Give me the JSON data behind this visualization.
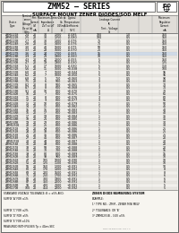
{
  "title": "ZMM52 – SERIES",
  "subtitle": "SURFACE MOUNT ZENER DIODES/SOD MELF",
  "bg_color": "#d8d4cc",
  "table_bg": "#ffffff",
  "header_bg": "#e0ddd8",
  "rows": [
    [
      "ZMM5221B",
      "2.4",
      "20",
      "30",
      "1200",
      "-0.085",
      "100",
      "1.0",
      "150"
    ],
    [
      "ZMM5222B",
      "2.5",
      "20",
      "30",
      "1250",
      "-0.080",
      "100",
      "0.5",
      "150"
    ],
    [
      "ZMM5223B",
      "2.7",
      "20",
      "30",
      "1300",
      "-0.076",
      "75",
      "0.5",
      "150"
    ],
    [
      "ZMM5224B",
      "2.8",
      "20",
      "35",
      "1400",
      "-0.076",
      "75",
      "0.5",
      "150"
    ],
    [
      "ZMM5225B",
      "3.0",
      "20",
      "40",
      "1600",
      "-0.075",
      "50",
      "0.5",
      "150"
    ],
    [
      "ZMM5226B",
      "3.3",
      "20",
      "28",
      "1600",
      "-0.070",
      "25",
      "0.5",
      "150"
    ],
    [
      "ZMM5227B",
      "3.6",
      "20",
      "24",
      "1700",
      "-0.065",
      "15",
      "0.5",
      "150"
    ],
    [
      "ZMM5228B",
      "3.9",
      "20",
      "23",
      "1900",
      "-0.060",
      "10",
      "0.5",
      "150"
    ],
    [
      "ZMM5229B",
      "4.3",
      "20",
      "22",
      "2000",
      "-0.055",
      "5",
      "0.5",
      "150"
    ],
    [
      "ZMM5230B",
      "4.7",
      "20",
      "19",
      "1900",
      "-0.030",
      "5",
      "0.5",
      "125"
    ],
    [
      "ZMM5231B",
      "5.1",
      "20",
      "17",
      "1600",
      "-0.030",
      "5",
      "0.5",
      "110"
    ],
    [
      "ZMM5232B",
      "5.6",
      "20",
      "11",
      "1600",
      "+0.038",
      "5",
      "0.5",
      "100"
    ],
    [
      "ZMM5233B",
      "6.0",
      "20",
      "7",
      "1600",
      "+0.044",
      "5",
      "0.5",
      "95"
    ],
    [
      "ZMM5234B",
      "6.2",
      "20",
      "7",
      "1000",
      "+0.050",
      "5",
      "0.5",
      "95"
    ],
    [
      "ZMM5235B",
      "6.8",
      "20",
      "5",
      "750",
      "+0.060",
      "3",
      "0.5",
      "90"
    ],
    [
      "ZMM5236B",
      "7.5",
      "20",
      "6",
      "500",
      "+0.063",
      "3",
      "0.5",
      "80"
    ],
    [
      "ZMM5237B",
      "8.2",
      "20",
      "8",
      "500",
      "+0.065",
      "3",
      "0.5",
      "70"
    ],
    [
      "ZMM5238B",
      "8.7",
      "20",
      "8",
      "600",
      "+0.068",
      "3",
      "0.5",
      "70"
    ],
    [
      "ZMM5239B",
      "9.1",
      "20",
      "10",
      "600",
      "+0.070",
      "3",
      "0.5",
      "70"
    ],
    [
      "ZMM5240B",
      "10",
      "20",
      "7",
      "600",
      "+0.075",
      "3",
      "0.5",
      "65"
    ],
    [
      "ZMM5241B",
      "11",
      "20",
      "8",
      "600",
      "+0.076",
      "3",
      "0.5",
      "60"
    ],
    [
      "ZMM5242B",
      "12",
      "20",
      "9",
      "600",
      "+0.077",
      "3",
      "0.5",
      "55"
    ],
    [
      "ZMM5243B",
      "13",
      "20",
      "10",
      "600",
      "+0.079",
      "1",
      "0.5",
      "50"
    ],
    [
      "ZMM5244B",
      "14",
      "20",
      "11",
      "600",
      "+0.082",
      "1",
      "0.5",
      "45"
    ],
    [
      "ZMM5245B",
      "15",
      "20",
      "16",
      "600",
      "+0.083",
      "1",
      "0.5",
      "40"
    ],
    [
      "ZMM5246B",
      "16",
      "20",
      "17",
      "600",
      "+0.083",
      "1",
      "0.5",
      "40"
    ],
    [
      "ZMM5247B",
      "17",
      "20",
      "19",
      "600",
      "+0.084",
      "1",
      "0.5",
      "35"
    ],
    [
      "ZMM5248B",
      "18",
      "20",
      "21",
      "600",
      "+0.085",
      "1",
      "0.5",
      "35"
    ],
    [
      "ZMM5249B",
      "19",
      "20",
      "23",
      "600",
      "+0.086",
      "1",
      "0.5",
      "30"
    ],
    [
      "ZMM5250B",
      "20",
      "20",
      "25",
      "600",
      "+0.086",
      "1",
      "0.5",
      "30"
    ],
    [
      "ZMM5251B",
      "22",
      "20",
      "29",
      "600",
      "+0.086",
      "1",
      "0.5",
      "25"
    ],
    [
      "ZMM5252B",
      "24",
      "20",
      "33",
      "600",
      "+0.086",
      "1",
      "0.5",
      "25"
    ],
    [
      "ZMM5253B",
      "25",
      "20",
      "35",
      "600",
      "+0.086",
      "1",
      "0.5",
      "25"
    ],
    [
      "ZMM5254B",
      "27",
      "20",
      "41",
      "600",
      "+0.087",
      "1",
      "0.5",
      "20"
    ],
    [
      "ZMM5255B",
      "28",
      "20",
      "44",
      "600",
      "+0.087",
      "1",
      "0.5",
      "20"
    ],
    [
      "ZMM5256B",
      "30",
      "20",
      "49",
      "600",
      "+0.088",
      "1",
      "0.5",
      "20"
    ],
    [
      "ZMM5257B",
      "33",
      "20",
      "58",
      "700",
      "+0.088",
      "1",
      "0.5",
      "20"
    ],
    [
      "ZMM5258B",
      "36",
      "20",
      "70",
      "700",
      "+0.088",
      "1",
      "0.5",
      "15"
    ],
    [
      "ZMM5259B",
      "39",
      "20",
      "80",
      "800",
      "+0.089",
      "1",
      "0.5",
      "15"
    ],
    [
      "ZMM5260B",
      "43",
      "20",
      "93",
      "900",
      "+0.089",
      "1",
      "0.5",
      "10"
    ],
    [
      "ZMM5261B",
      "47",
      "20",
      "105",
      "1000",
      "+0.090",
      "1",
      "0.5",
      "10"
    ],
    [
      "ZMM5262B",
      "51",
      "20",
      "125",
      "1100",
      "+0.090",
      "1",
      "0.5",
      "10"
    ],
    [
      "ZMM5263B",
      "56",
      "20",
      "150",
      "1200",
      "+0.091",
      "1",
      "0.5",
      "10"
    ],
    [
      "ZMM5264B",
      "60",
      "20",
      "170",
      "1300",
      "+0.091",
      "1",
      "0.5",
      "8"
    ],
    [
      "ZMM5265B",
      "68",
      "20",
      "200",
      "1500",
      "+0.091",
      "1",
      "0.5",
      "8"
    ],
    [
      "ZMM5266B",
      "75",
      "20",
      "250",
      "1700",
      "+0.091",
      "1",
      "0.5",
      "6"
    ],
    [
      "ZMM5267B",
      "82",
      "20",
      "300",
      "1900",
      "+0.091",
      "1",
      "0.5",
      "6"
    ],
    [
      "ZMM5268B",
      "87",
      "20",
      "350",
      "2000",
      "+0.091",
      "1",
      "0.5",
      "6"
    ],
    [
      "ZMM5269B",
      "91",
      "20",
      "400",
      "2100",
      "+0.091",
      "1",
      "0.5",
      "5"
    ],
    [
      "ZMM5270B",
      "100",
      "20",
      "454",
      "2200",
      "+0.092",
      "1",
      "0.5",
      "5"
    ]
  ],
  "col_headers_line1": [
    "Device",
    "Nominal",
    "Test",
    "Maximum Zener Impedance",
    "",
    "Typical",
    "Maximum Reverse",
    "",
    "Maximum"
  ],
  "col_headers_line2": [
    "Type",
    "zener",
    "Current",
    "ZzT at IzT",
    "Zzk at",
    "Temperature",
    "Leakage Current",
    "",
    "Regulator"
  ],
  "footnote_left": [
    "STANDARD VOLTAGE TOLERANCE: B = ±5% AND:",
    "SUFFIX 'A' FOR ±1%",
    "",
    "SUFFIX 'C' FOR ±2%",
    "SUFFIX 'D' FOR ±5%",
    "SUFFIX 'E' FOR ±10%",
    "MEASURED WITH PULSES Tp = 40ms SEC"
  ],
  "footnote_right": [
    "ZENER DIODE NUMBERING SYSTEM",
    "EXAMPLE:",
    "1° TYPE NO. : ZMM – ZENER MINI MELF",
    "2° TOLERANCE: OR 'B'",
    "3° ZMM52(5)B – 3.0V ±5%"
  ],
  "highlight_row": "ZMM5227B"
}
